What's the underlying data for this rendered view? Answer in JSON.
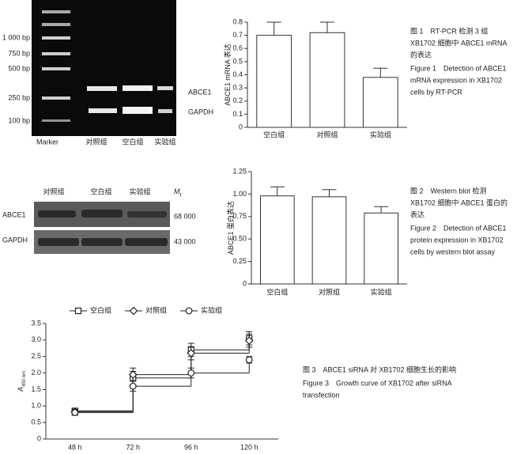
{
  "gel": {
    "size_labels": [
      "1 000 bp",
      "750 bp",
      "500 bp",
      "250 bp",
      "100 bp"
    ],
    "lane_labels": [
      "Marker",
      "对照组",
      "空白组",
      "实验组"
    ],
    "band_labels": [
      "ABCE1",
      "GAPDH"
    ]
  },
  "blot": {
    "lane_labels": [
      "对照组",
      "空白组",
      "实验组"
    ],
    "mr": [
      "M",
      "r"
    ],
    "row_labels": [
      "ABCE1",
      "GAPDH"
    ],
    "weights": [
      "68 000",
      "43 000"
    ]
  },
  "chart_data": [
    {
      "type": "bar",
      "ylabel": "ABCE1 mRNA 表达",
      "categories": [
        "空白组",
        "对照组",
        "实验组"
      ],
      "values": [
        0.7,
        0.72,
        0.38
      ],
      "errors": [
        0.1,
        0.08,
        0.07
      ],
      "color": "#ffffff",
      "ylim": [
        0,
        0.8
      ],
      "yticks": [
        0,
        0.1,
        0.2,
        0.3,
        0.4,
        0.5,
        0.6,
        0.7,
        0.8
      ]
    },
    {
      "type": "bar",
      "ylabel": "ABCE1 蛋白表达",
      "categories": [
        "空白组",
        "对照组",
        "实验组"
      ],
      "values": [
        0.98,
        0.97,
        0.79
      ],
      "errors": [
        0.1,
        0.08,
        0.07
      ],
      "color": "#ffffff",
      "ylim": [
        0,
        1.25
      ],
      "yticks": [
        0,
        0.25,
        {
          "value": 0.5,
          "label": "0.50"
        },
        0.75,
        {
          "value": 1,
          "label": "1.00"
        },
        1.25
      ]
    },
    {
      "type": "line",
      "ylabel": "A",
      "ylabel_sub": "450 nm",
      "categories": [
        "48 h",
        "72 h",
        "96 h",
        "120 h"
      ],
      "series": [
        {
          "name": "空白组",
          "marker": "square",
          "color": "#222222",
          "values": [
            0.85,
            1.85,
            2.7,
            3.05
          ],
          "errors": [
            0.08,
            0.2,
            0.2,
            0.2
          ]
        },
        {
          "name": "对照组",
          "marker": "diamond",
          "color": "#222222",
          "values": [
            0.82,
            1.95,
            2.6,
            2.98
          ],
          "errors": [
            0.08,
            0.2,
            0.2,
            0.2
          ]
        },
        {
          "name": "实验组",
          "marker": "circle",
          "color": "#222222",
          "values": [
            0.8,
            1.6,
            2.0,
            2.4
          ],
          "errors": [
            0.08,
            0.15,
            0.15,
            0.1
          ]
        }
      ],
      "ylim": [
        0,
        3.5
      ],
      "yticks": [
        0,
        0.5,
        {
          "value": 1,
          "label": "1.0"
        },
        1.5,
        {
          "value": 2,
          "label": "2.0"
        },
        2.5,
        {
          "value": 3,
          "label": "3.0"
        },
        3.5
      ]
    }
  ],
  "captions": [
    {
      "zh": [
        "图 1　RT-PCR 检测 3 组",
        "XB1702 细胞中 ABCE1 mRNA",
        "的表达"
      ],
      "en": [
        "Figure 1　Detection of ABCE1",
        "mRNA expression in XB1702",
        "cells by RT-PCR"
      ]
    },
    {
      "zh": [
        "图 2　Western blot 检测",
        "XB1702 细胞中 ABCE1 蛋白的",
        "表达"
      ],
      "en": [
        "Figure 2　Detection of ABCE1",
        "protein expression in XB1702",
        "cells by western blot assay"
      ]
    },
    {
      "zh": [
        "图 3　ABCE1 siRNA 对 XB1702 细胞生长的影响"
      ],
      "en": [
        "Figure 3　Growth curve of XB1702 after siRNA",
        "transfection"
      ]
    }
  ]
}
